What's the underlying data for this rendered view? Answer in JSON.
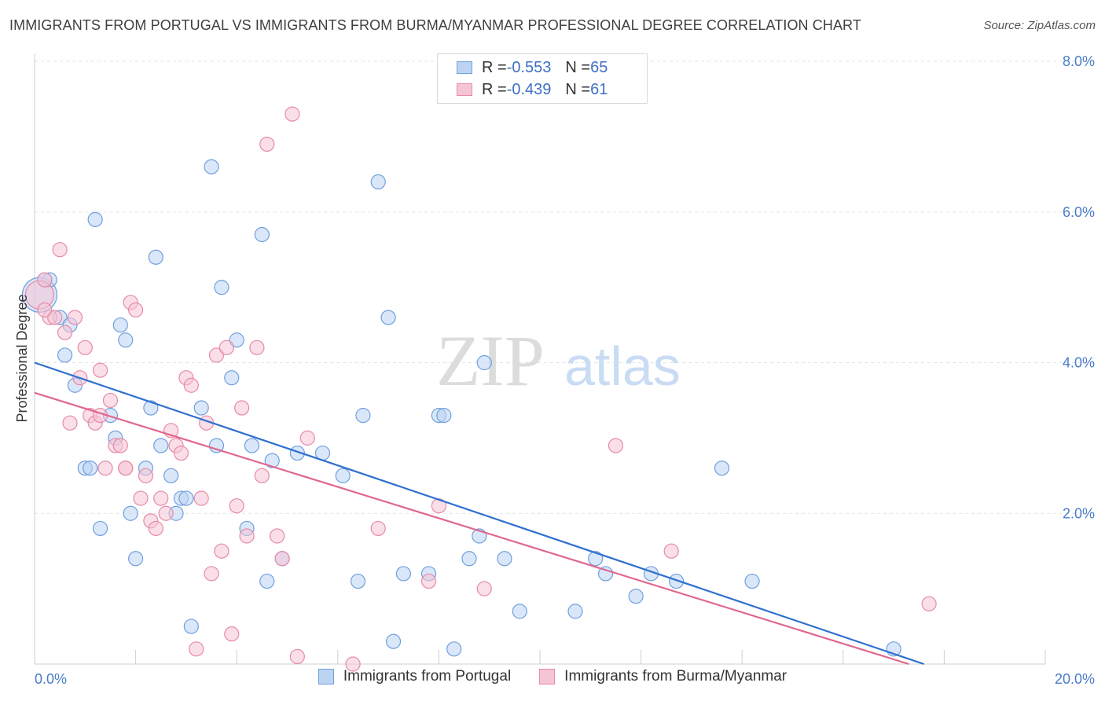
{
  "header": {
    "title": "IMMIGRANTS FROM PORTUGAL VS IMMIGRANTS FROM BURMA/MYANMAR PROFESSIONAL DEGREE CORRELATION CHART",
    "source": "Source: ZipAtlas.com"
  },
  "watermark": {
    "zip": "ZIP",
    "atlas": "atlas"
  },
  "legend_top": {
    "rows": [
      {
        "r_label": "R = ",
        "r_value": "-0.553",
        "n_label": "N = ",
        "n_value": "65"
      },
      {
        "r_label": "R = ",
        "r_value": "-0.439",
        "n_label": "N = ",
        "n_value": "61"
      }
    ]
  },
  "chart_data": {
    "type": "scatter",
    "ylabel": "Professional Degree",
    "xlim": [
      0,
      20
    ],
    "ylim": [
      0,
      8
    ],
    "x_tick_labels": [
      {
        "value": 0,
        "label": "0.0%"
      },
      {
        "value": 20,
        "label": "20.0%"
      }
    ],
    "y_tick_labels": [
      {
        "value": 2,
        "label": "2.0%"
      },
      {
        "value": 4,
        "label": "4.0%"
      },
      {
        "value": 6,
        "label": "6.0%"
      },
      {
        "value": 8,
        "label": "8.0%"
      }
    ],
    "grid": true,
    "legend_position": "bottom",
    "series": [
      {
        "name": "Immigrants from Portugal",
        "color": "#6f9fde",
        "fill": "#bcd3f2",
        "trend": {
          "x": [
            0,
            17.6
          ],
          "y": [
            4.0,
            0.0
          ]
        },
        "points": [
          [
            0.1,
            4.9,
            22
          ],
          [
            0.3,
            5.1,
            9
          ],
          [
            0.5,
            4.6,
            9
          ],
          [
            0.6,
            4.1,
            9
          ],
          [
            0.7,
            4.5,
            9
          ],
          [
            0.8,
            3.7,
            9
          ],
          [
            1.0,
            2.6,
            9
          ],
          [
            1.1,
            2.6,
            9
          ],
          [
            1.2,
            5.9,
            9
          ],
          [
            1.3,
            1.8,
            9
          ],
          [
            1.5,
            3.3,
            9
          ],
          [
            1.6,
            3.0,
            9
          ],
          [
            1.7,
            4.5,
            9
          ],
          [
            1.8,
            4.3,
            9
          ],
          [
            1.9,
            2.0,
            9
          ],
          [
            2.0,
            1.4,
            9
          ],
          [
            2.2,
            2.6,
            9
          ],
          [
            2.3,
            3.4,
            9
          ],
          [
            2.4,
            5.4,
            9
          ],
          [
            2.5,
            2.9,
            9
          ],
          [
            2.7,
            2.5,
            9
          ],
          [
            2.8,
            2.0,
            9
          ],
          [
            2.9,
            2.2,
            9
          ],
          [
            3.0,
            2.2,
            9
          ],
          [
            3.1,
            0.5,
            9
          ],
          [
            3.3,
            3.4,
            9
          ],
          [
            3.5,
            6.6,
            9
          ],
          [
            3.6,
            2.9,
            9
          ],
          [
            3.7,
            5.0,
            9
          ],
          [
            3.9,
            3.8,
            9
          ],
          [
            4.0,
            4.3,
            9
          ],
          [
            4.2,
            1.8,
            9
          ],
          [
            4.3,
            2.9,
            9
          ],
          [
            4.5,
            5.7,
            9
          ],
          [
            4.6,
            1.1,
            9
          ],
          [
            4.7,
            2.7,
            9
          ],
          [
            4.9,
            1.4,
            9
          ],
          [
            5.2,
            2.8,
            9
          ],
          [
            5.7,
            2.8,
            9
          ],
          [
            6.1,
            2.5,
            9
          ],
          [
            6.4,
            1.1,
            9
          ],
          [
            6.5,
            3.3,
            9
          ],
          [
            6.8,
            6.4,
            9
          ],
          [
            7.0,
            4.6,
            9
          ],
          [
            7.1,
            0.3,
            9
          ],
          [
            7.3,
            1.2,
            9
          ],
          [
            7.8,
            1.2,
            9
          ],
          [
            8.0,
            3.3,
            9
          ],
          [
            8.1,
            3.3,
            9
          ],
          [
            8.3,
            0.2,
            9
          ],
          [
            8.6,
            1.4,
            9
          ],
          [
            8.8,
            1.7,
            9
          ],
          [
            8.9,
            4.0,
            9
          ],
          [
            9.3,
            1.4,
            9
          ],
          [
            9.6,
            0.7,
            9
          ],
          [
            10.7,
            0.7,
            9
          ],
          [
            11.1,
            1.4,
            9
          ],
          [
            11.3,
            1.2,
            9
          ],
          [
            11.9,
            0.9,
            9
          ],
          [
            12.2,
            1.2,
            9
          ],
          [
            12.7,
            1.1,
            9
          ],
          [
            13.6,
            2.6,
            9
          ],
          [
            14.2,
            1.1,
            9
          ],
          [
            17.0,
            0.2,
            9
          ],
          [
            0.2,
            5.1,
            9
          ]
        ]
      },
      {
        "name": "Immigrants from Burma/Myanmar",
        "color": "#e68aa8",
        "fill": "#f6c5d5",
        "trend": {
          "x": [
            0,
            17.3
          ],
          "y": [
            3.6,
            0.0
          ]
        },
        "points": [
          [
            0.1,
            4.9,
            18
          ],
          [
            0.2,
            5.1,
            9
          ],
          [
            0.3,
            4.6,
            9
          ],
          [
            0.4,
            4.6,
            9
          ],
          [
            0.5,
            5.5,
            9
          ],
          [
            0.6,
            4.4,
            9
          ],
          [
            0.7,
            3.2,
            9
          ],
          [
            0.8,
            4.6,
            9
          ],
          [
            0.9,
            3.8,
            9
          ],
          [
            1.0,
            4.2,
            9
          ],
          [
            1.1,
            3.3,
            9
          ],
          [
            1.2,
            3.2,
            9
          ],
          [
            1.3,
            3.3,
            9
          ],
          [
            1.3,
            3.9,
            9
          ],
          [
            1.4,
            2.6,
            9
          ],
          [
            1.5,
            3.5,
            9
          ],
          [
            1.6,
            2.9,
            9
          ],
          [
            1.7,
            2.9,
            9
          ],
          [
            1.8,
            2.6,
            9
          ],
          [
            1.8,
            2.6,
            9
          ],
          [
            1.9,
            4.8,
            9
          ],
          [
            2.0,
            4.7,
            9
          ],
          [
            2.1,
            2.2,
            9
          ],
          [
            2.2,
            2.5,
            9
          ],
          [
            2.3,
            1.9,
            9
          ],
          [
            2.4,
            1.8,
            9
          ],
          [
            2.5,
            2.2,
            9
          ],
          [
            2.6,
            2.0,
            9
          ],
          [
            2.7,
            3.1,
            9
          ],
          [
            2.8,
            2.9,
            9
          ],
          [
            2.9,
            2.8,
            9
          ],
          [
            3.0,
            3.8,
            9
          ],
          [
            3.1,
            3.7,
            9
          ],
          [
            3.2,
            0.2,
            9
          ],
          [
            3.3,
            2.2,
            9
          ],
          [
            3.4,
            3.2,
            9
          ],
          [
            3.5,
            1.2,
            9
          ],
          [
            3.6,
            4.1,
            9
          ],
          [
            3.7,
            1.5,
            9
          ],
          [
            3.8,
            4.2,
            9
          ],
          [
            3.9,
            0.4,
            9
          ],
          [
            4.0,
            2.1,
            9
          ],
          [
            4.1,
            3.4,
            9
          ],
          [
            4.2,
            1.7,
            9
          ],
          [
            4.4,
            4.2,
            9
          ],
          [
            4.5,
            2.5,
            9
          ],
          [
            4.6,
            6.9,
            9
          ],
          [
            4.8,
            1.7,
            9
          ],
          [
            4.9,
            1.4,
            9
          ],
          [
            5.1,
            7.3,
            9
          ],
          [
            5.2,
            0.1,
            9
          ],
          [
            5.4,
            3.0,
            9
          ],
          [
            6.3,
            0.0,
            9
          ],
          [
            6.8,
            1.8,
            9
          ],
          [
            7.8,
            1.1,
            9
          ],
          [
            8.0,
            2.1,
            9
          ],
          [
            8.9,
            1.0,
            9
          ],
          [
            11.5,
            2.9,
            9
          ],
          [
            12.6,
            1.5,
            9
          ],
          [
            17.7,
            0.8,
            9
          ],
          [
            0.2,
            4.7,
            9
          ]
        ]
      }
    ]
  }
}
